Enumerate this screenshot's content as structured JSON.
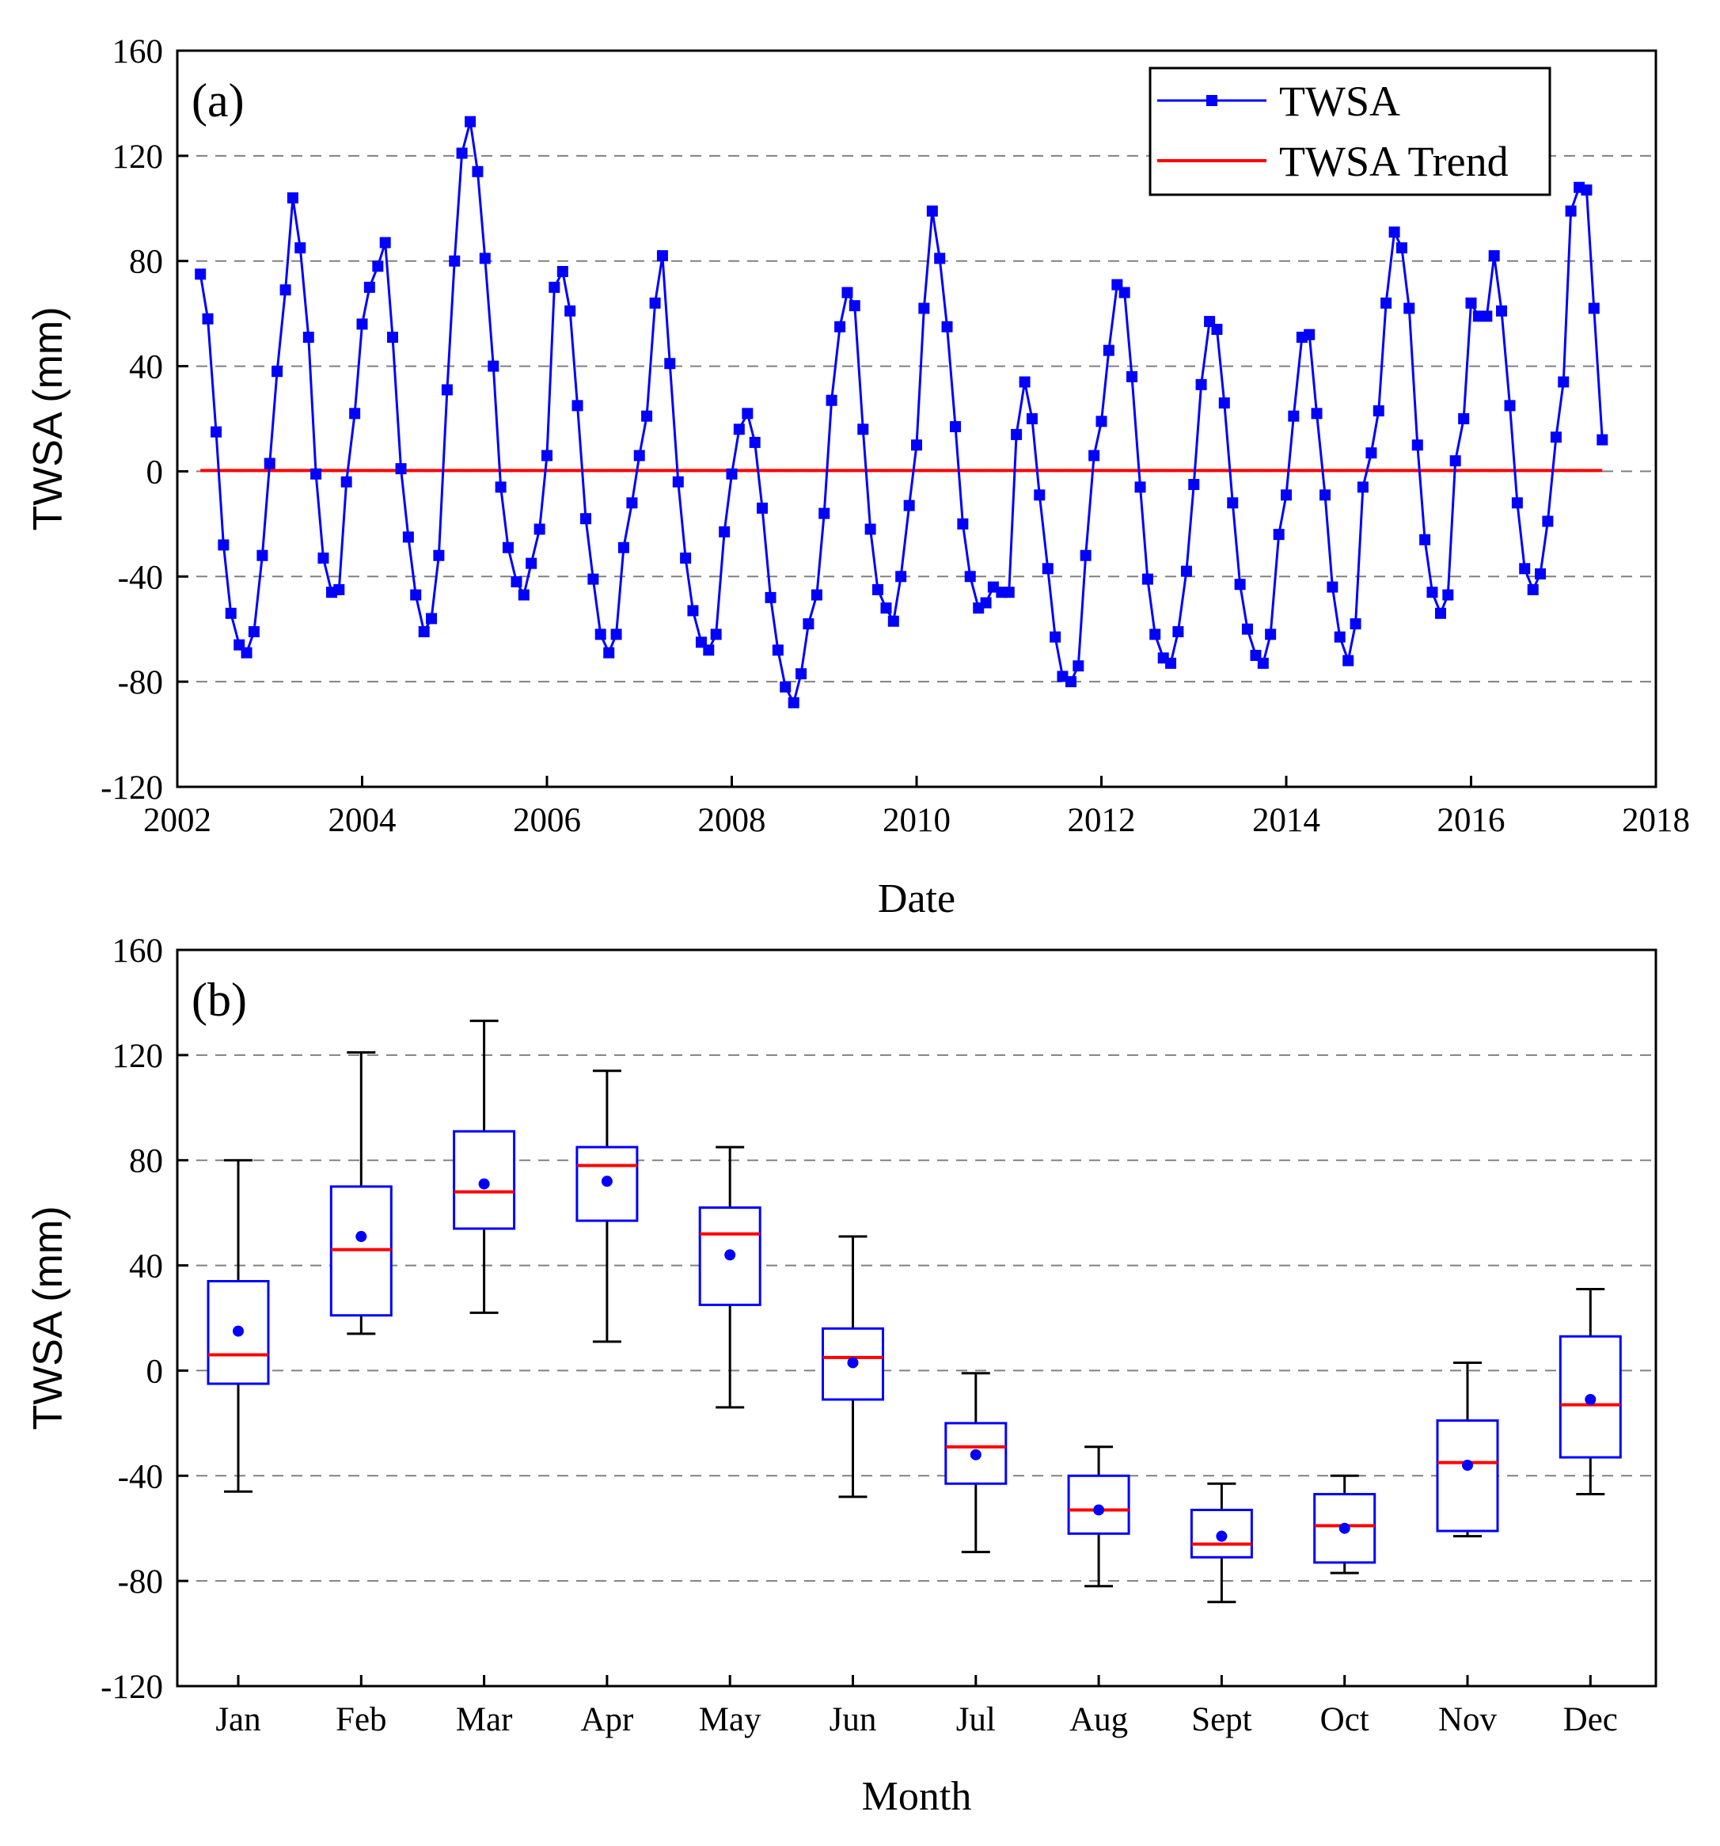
{
  "colors": {
    "series": "#0000ff",
    "trend": "#ff0000",
    "median": "#ff0000",
    "box": "#0000ff",
    "whisker": "#000000",
    "grid": "#808080"
  },
  "chart_data": [
    {
      "type": "line",
      "panel_label": "(a)",
      "xlabel": "Date",
      "ylabel": "TWSA (mm)",
      "xlim": [
        2002,
        2018
      ],
      "ylim": [
        -120,
        160
      ],
      "x_ticks": [
        2002,
        2004,
        2006,
        2008,
        2010,
        2012,
        2014,
        2016,
        2018
      ],
      "y_ticks": [
        -120,
        -80,
        -40,
        0,
        40,
        80,
        120,
        160
      ],
      "grid": "horizontal dashed",
      "legend_position": "top-right",
      "series": [
        {
          "name": "TWSA",
          "style": "line with square markers",
          "x": [
            2002.25,
            2002.33,
            2002.42,
            2002.5,
            2002.58,
            2002.67,
            2002.75,
            2002.83,
            2002.92,
            2003.0,
            2003.08,
            2003.17,
            2003.25,
            2003.33,
            2003.42,
            2003.5,
            2003.58,
            2003.67,
            2003.75,
            2003.83,
            2003.92,
            2004.0,
            2004.08,
            2004.17,
            2004.25,
            2004.33,
            2004.42,
            2004.5,
            2004.58,
            2004.67,
            2004.75,
            2004.83,
            2004.92,
            2005.0,
            2005.08,
            2005.17,
            2005.25,
            2005.33,
            2005.42,
            2005.5,
            2005.58,
            2005.67,
            2005.75,
            2005.83,
            2005.92,
            2006.0,
            2006.08,
            2006.17,
            2006.25,
            2006.33,
            2006.42,
            2006.5,
            2006.58,
            2006.67,
            2006.75,
            2006.83,
            2006.92,
            2007.0,
            2007.08,
            2007.17,
            2007.25,
            2007.33,
            2007.42,
            2007.5,
            2007.58,
            2007.67,
            2007.75,
            2007.83,
            2007.92,
            2008.0,
            2008.08,
            2008.17,
            2008.25,
            2008.33,
            2008.42,
            2008.5,
            2008.58,
            2008.67,
            2008.75,
            2008.83,
            2008.92,
            2009.0,
            2009.08,
            2009.17,
            2009.25,
            2009.33,
            2009.42,
            2009.5,
            2009.58,
            2009.67,
            2009.75,
            2009.83,
            2009.92,
            2010.0,
            2010.08,
            2010.17,
            2010.25,
            2010.33,
            2010.42,
            2010.5,
            2010.58,
            2010.67,
            2010.75,
            2010.83,
            2010.92,
            2011.0,
            2011.08,
            2011.17,
            2011.25,
            2011.33,
            2011.42,
            2011.5,
            2011.58,
            2011.67,
            2011.75,
            2011.83,
            2011.92,
            2012.0,
            2012.08,
            2012.17,
            2012.25,
            2012.33,
            2012.42,
            2012.5,
            2012.58,
            2012.67,
            2012.75,
            2012.83,
            2012.92,
            2013.0,
            2013.08,
            2013.17,
            2013.25,
            2013.33,
            2013.42,
            2013.5,
            2013.58,
            2013.67,
            2013.75,
            2013.83,
            2013.92,
            2014.0,
            2014.08,
            2014.17,
            2014.25,
            2014.33,
            2014.42,
            2014.5,
            2014.58,
            2014.67,
            2014.75,
            2014.83,
            2014.92,
            2015.0,
            2015.08,
            2015.17,
            2015.25,
            2015.33,
            2015.42,
            2015.5,
            2015.58,
            2015.67,
            2015.75,
            2015.83,
            2015.92,
            2016.0,
            2016.08,
            2016.17,
            2016.25,
            2016.33,
            2016.42,
            2016.5,
            2016.58,
            2016.67,
            2016.75,
            2016.83,
            2016.92,
            2017.0,
            2017.08,
            2017.17,
            2017.25,
            2017.33,
            2017.42
          ],
          "values": [
            75,
            58,
            15,
            -28,
            -54,
            -66,
            -69,
            -61,
            -32,
            3,
            38,
            69,
            104,
            85,
            51,
            -1,
            -33,
            -46,
            -45,
            -4,
            22,
            56,
            70,
            78,
            87,
            51,
            1,
            -25,
            -47,
            -61,
            -56,
            -32,
            31,
            80,
            121,
            133,
            114,
            81,
            40,
            -6,
            -29,
            -42,
            -47,
            -35,
            -22,
            6,
            70,
            76,
            61,
            25,
            -18,
            -41,
            -62,
            -69,
            -62,
            -29,
            -12,
            6,
            21,
            64,
            82,
            41,
            -4,
            -33,
            -53,
            -65,
            -68,
            -62,
            -23,
            -1,
            16,
            22,
            11,
            -14,
            -48,
            -68,
            -82,
            -88,
            -77,
            -58,
            -47,
            -16,
            27,
            55,
            68,
            63,
            16,
            -22,
            -45,
            -52,
            -57,
            -40,
            -13,
            10,
            62,
            99,
            81,
            55,
            17,
            -20,
            -40,
            -52,
            -50,
            -44,
            -46,
            -46,
            14,
            34,
            20,
            -9,
            -37,
            -63,
            -78,
            -80,
            -74,
            -32,
            6,
            19,
            46,
            71,
            68,
            36,
            -6,
            -41,
            -62,
            -71,
            -73,
            -61,
            -38,
            -5,
            33,
            57,
            54,
            26,
            -12,
            -43,
            -60,
            -70,
            -73,
            -62,
            -24,
            -9,
            21,
            51,
            52,
            22,
            -9,
            -44,
            -63,
            -72,
            -58,
            -6,
            7,
            23,
            64,
            91,
            85,
            62,
            10,
            -26,
            -46,
            -54,
            -47,
            4,
            20,
            64,
            59,
            59,
            82,
            61,
            25,
            -12,
            -37,
            -45,
            -39,
            -19,
            13,
            34,
            99,
            108,
            107,
            62,
            12
          ]
        },
        {
          "name": "TWSA Trend",
          "style": "line",
          "x": [
            2002.25,
            2017.42
          ],
          "values": [
            0.3,
            0.3
          ]
        }
      ]
    },
    {
      "type": "box",
      "panel_label": "(b)",
      "xlabel": "Month",
      "ylabel": "TWSA (mm)",
      "ylim": [
        -120,
        160
      ],
      "y_ticks": [
        -120,
        -80,
        -40,
        0,
        40,
        80,
        120,
        160
      ],
      "grid": "horizontal dashed",
      "categories": [
        "Jan",
        "Feb",
        "Mar",
        "Apr",
        "May",
        "Jun",
        "Jul",
        "Aug",
        "Sept",
        "Oct",
        "Nov",
        "Dec"
      ],
      "whisker_min": [
        -46,
        14,
        22,
        11,
        -14,
        -48,
        -69,
        -82,
        -88,
        -77,
        -63,
        -47
      ],
      "q1": [
        -5,
        21,
        54,
        57,
        25,
        -11,
        -43,
        -62,
        -71,
        -73,
        -61,
        -33
      ],
      "median": [
        6,
        46,
        68,
        78,
        52,
        5,
        -29,
        -53,
        -66,
        -59,
        -35,
        -13
      ],
      "q3": [
        34,
        70,
        91,
        85,
        62,
        16,
        -20,
        -40,
        -53,
        -47,
        -19,
        13
      ],
      "whisker_max": [
        80,
        121,
        133,
        114,
        85,
        51,
        -1,
        -29,
        -43,
        -40,
        3,
        31
      ],
      "mean": [
        15,
        51,
        71,
        72,
        44,
        3,
        -32,
        -53,
        -63,
        -60,
        -36,
        -11
      ]
    }
  ]
}
